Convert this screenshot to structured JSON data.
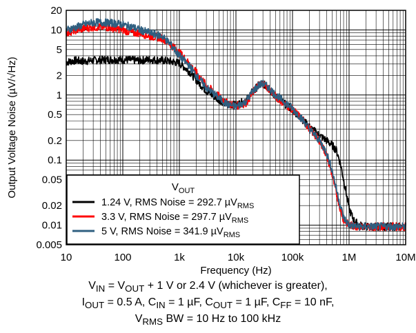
{
  "chart_data": {
    "type": "line",
    "scale": {
      "x": "log",
      "y": "log"
    },
    "grid": true,
    "xlabel": "Frequency (Hz)",
    "ylabel": "Output Voltage Noise (µV/√Hz)",
    "xlim": [
      10,
      10000000
    ],
    "ylim": [
      0.005,
      20
    ],
    "x_ticks": [
      {
        "value": 10,
        "label": "10"
      },
      {
        "value": 100,
        "label": "100"
      },
      {
        "value": 1000,
        "label": "1k"
      },
      {
        "value": 10000,
        "label": "10k"
      },
      {
        "value": 100000,
        "label": "100k"
      },
      {
        "value": 1000000,
        "label": "1M"
      },
      {
        "value": 10000000,
        "label": "10M"
      }
    ],
    "y_ticks": [
      {
        "value": 0.005,
        "label": "0.005"
      },
      {
        "value": 0.01,
        "label": "0.01"
      },
      {
        "value": 0.02,
        "label": "0.02"
      },
      {
        "value": 0.05,
        "label": "0.05"
      },
      {
        "value": 0.1,
        "label": "0.1"
      },
      {
        "value": 0.2,
        "label": "0.2"
      },
      {
        "value": 0.5,
        "label": "0.5"
      },
      {
        "value": 1,
        "label": "1"
      },
      {
        "value": 2,
        "label": "2"
      },
      {
        "value": 5,
        "label": "5"
      },
      {
        "value": 10,
        "label": "10"
      },
      {
        "value": 20,
        "label": "20"
      }
    ],
    "legend": {
      "title": "V",
      "title_sub": "OUT",
      "position": "bottom-left",
      "entries": [
        {
          "text": "1.24 V, RMS Noise = 292.7 µV",
          "sub": "RMS"
        },
        {
          "text": "3.3 V, RMS Noise = 297.7  µV",
          "sub": "RMS"
        },
        {
          "text": "5 V, RMS Noise = 341.9  µV",
          "sub": "RMS"
        }
      ]
    },
    "series": [
      {
        "color": "#000000",
        "x": [
          10,
          15,
          20,
          30,
          50,
          80,
          100,
          200,
          300,
          500,
          700,
          1000,
          1500,
          2000,
          3000,
          5000,
          7000,
          10000,
          15000,
          20000,
          25000,
          30000,
          40000,
          50000,
          70000,
          100000,
          150000,
          200000,
          300000,
          400000,
          500000,
          600000,
          700000,
          800000,
          900000,
          1000000,
          1200000,
          1500000,
          2000000,
          3000000,
          5000000,
          7000000,
          10000000
        ],
        "y": [
          3.2,
          3.4,
          3.3,
          3.4,
          3.5,
          3.5,
          3.5,
          3.4,
          3.5,
          3.4,
          3.3,
          3.1,
          2.3,
          1.7,
          1.15,
          0.85,
          0.72,
          0.7,
          0.82,
          1.15,
          1.4,
          1.5,
          1.2,
          0.95,
          0.75,
          0.6,
          0.42,
          0.32,
          0.24,
          0.2,
          0.17,
          0.14,
          0.09,
          0.05,
          0.03,
          0.018,
          0.012,
          0.01,
          0.0095,
          0.0095,
          0.0095,
          0.0095,
          0.0095
        ]
      },
      {
        "color": "#ff0000",
        "x": [
          10,
          15,
          20,
          30,
          50,
          80,
          100,
          150,
          200,
          300,
          500,
          700,
          1000,
          1500,
          2000,
          3000,
          5000,
          7000,
          10000,
          15000,
          20000,
          25000,
          30000,
          40000,
          50000,
          70000,
          100000,
          150000,
          200000,
          300000,
          400000,
          500000,
          600000,
          700000,
          800000,
          1000000,
          1500000,
          2000000,
          3000000,
          5000000,
          7000000,
          10000000
        ],
        "y": [
          9,
          10,
          10.5,
          11,
          11,
          10.5,
          10,
          9,
          9,
          8,
          7.5,
          6,
          4.5,
          3,
          2.2,
          1.4,
          0.95,
          0.75,
          0.68,
          0.75,
          1.1,
          1.4,
          1.5,
          1.2,
          0.95,
          0.75,
          0.6,
          0.42,
          0.3,
          0.2,
          0.12,
          0.06,
          0.03,
          0.018,
          0.012,
          0.01,
          0.0095,
          0.0095,
          0.0095,
          0.0095,
          0.0095,
          0.0095
        ]
      },
      {
        "color": "#2f5f80",
        "x": [
          10,
          15,
          20,
          30,
          50,
          80,
          100,
          150,
          200,
          300,
          500,
          700,
          1000,
          1500,
          2000,
          3000,
          5000,
          7000,
          10000,
          15000,
          20000,
          25000,
          30000,
          40000,
          50000,
          70000,
          100000,
          150000,
          200000,
          300000,
          400000,
          500000,
          600000,
          700000,
          800000,
          1000000,
          1500000,
          2000000,
          3000000,
          5000000,
          7000000,
          10000000
        ],
        "y": [
          10,
          11,
          12,
          13,
          13,
          12.5,
          12,
          11,
          10,
          9,
          8,
          6,
          4,
          2.8,
          2,
          1.3,
          0.9,
          0.72,
          0.66,
          0.8,
          1.15,
          1.4,
          1.5,
          1.25,
          1.0,
          0.8,
          0.62,
          0.42,
          0.3,
          0.2,
          0.13,
          0.07,
          0.035,
          0.02,
          0.013,
          0.01,
          0.0095,
          0.0095,
          0.0095,
          0.0095,
          0.0095,
          0.0095
        ]
      }
    ]
  },
  "caption": {
    "line1": {
      "a": "V",
      "a_sub": "IN",
      "b": " = V",
      "b_sub": "OUT",
      "c": " + 1 V or 2.4 V (whichever is greater),"
    },
    "line2": {
      "a": "I",
      "a_sub": "OUT",
      "b": " = 0.5 A, C",
      "b_sub": "IN",
      "c": " = 1 µF, C",
      "c_sub": "OUT",
      "d": " = 1 µF, C",
      "d_sub": "FF",
      "e": " = 10 nF,"
    },
    "line3": {
      "a": "V",
      "a_sub": "RMS",
      "b": " BW = 10 Hz to 100 kHz"
    }
  }
}
